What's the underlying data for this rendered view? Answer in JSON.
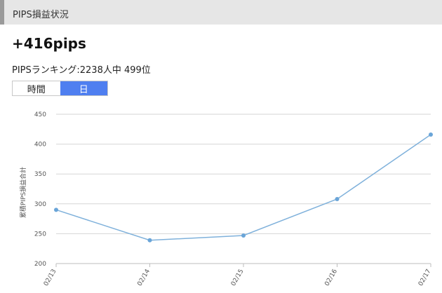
{
  "header": {
    "title": "PIPS損益状況"
  },
  "summary": {
    "total": "+416pips",
    "ranking": "PIPSランキング:2238人中 499位"
  },
  "toggle": {
    "items": [
      {
        "label": "時間",
        "active": false
      },
      {
        "label": "日",
        "active": true
      }
    ]
  },
  "colors": {
    "accent": "#4f7ff0",
    "line": "#7fb1db",
    "point": "#6aa5d8"
  },
  "chart_data": {
    "type": "line",
    "categories": [
      "02/13",
      "02/14",
      "02/15",
      "02/16",
      "02/17"
    ],
    "series": [
      {
        "values": [
          290,
          239,
          247,
          308,
          416
        ]
      }
    ],
    "ylabel": "累積PIPS損益合計",
    "ylim": [
      200,
      450
    ],
    "yticks": [
      200,
      250,
      300,
      350,
      400,
      450
    ],
    "grid": true
  }
}
